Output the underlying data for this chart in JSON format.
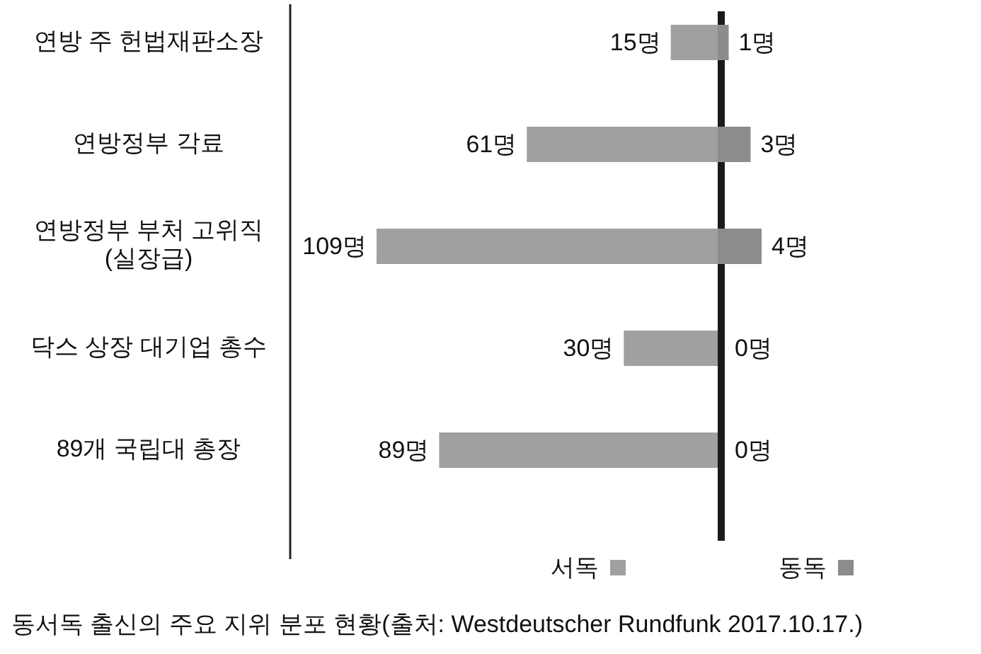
{
  "chart_data": [
    {
      "type": "bar",
      "orientation": "horizontal",
      "categories": [
        "연방 주 헌법재판소장",
        "연방정부 각료",
        "연방정부 부처 고위직\n(실장급)",
        "닥스 상장 대기업 총수",
        "89개 국립대 총장"
      ],
      "series": [
        {
          "name": "서독",
          "color": "#a0a0a0",
          "values": [
            15,
            61,
            109,
            30,
            89
          ],
          "value_labels": [
            "15명",
            "61명",
            "109명",
            "30명",
            "89명"
          ]
        }
      ],
      "xlim": [
        109,
        0
      ],
      "tick_labels": "y",
      "legend": "bottom",
      "annotations": [
        "동서독 출신의 주요 지위 분포 현황(출처: Westdeutscher Rundfunk 2017.10.17.)"
      ]
    },
    {
      "type": "bar",
      "orientation": "horizontal",
      "categories": [
        null,
        null,
        null,
        null,
        null
      ],
      "series": [
        {
          "name": "동독",
          "color": "#8c8c8c",
          "values": [
            1,
            3,
            4,
            0,
            0
          ],
          "value_labels": [
            "1명",
            "3명",
            "4명",
            "0명",
            "0명"
          ]
        }
      ],
      "xlim": [
        0,
        4
      ],
      "tick_labels": false,
      "legend": "bottom"
    }
  ]
}
